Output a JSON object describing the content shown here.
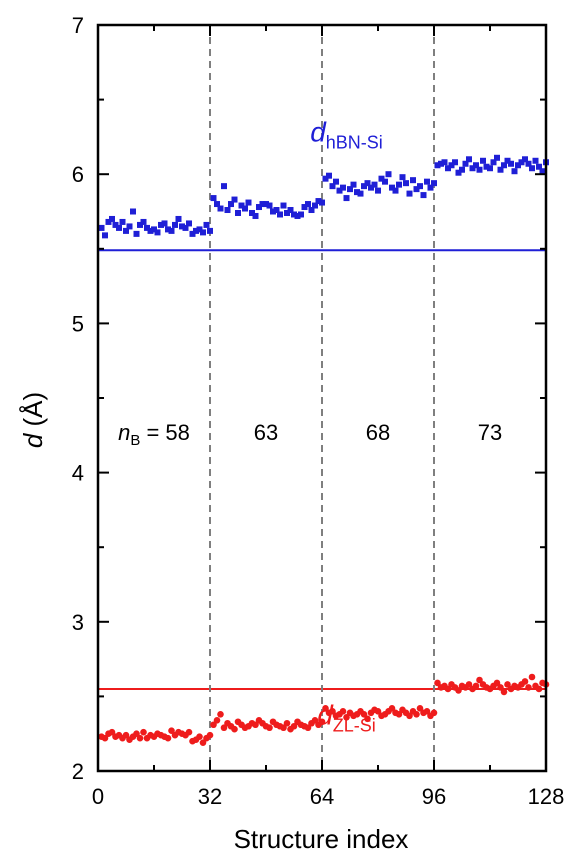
{
  "chart_data": {
    "type": "scatter",
    "xlabel": "Structure index",
    "ylabel": {
      "symbol": "d",
      "rest": " (Å)"
    },
    "xlim": [
      0,
      128
    ],
    "ylim": [
      2,
      7
    ],
    "xticks": [
      0,
      32,
      64,
      96,
      128
    ],
    "xtick_labels": [
      "0",
      "32",
      "64",
      "96",
      "128"
    ],
    "yticks": [
      2,
      3,
      4,
      5,
      6,
      7
    ],
    "ytick_labels": [
      "2",
      "3",
      "4",
      "5",
      "6",
      "7"
    ],
    "grid": false,
    "dividers": [
      32,
      64,
      96
    ],
    "group_labels": [
      {
        "prefix": "n",
        "subscript": "B",
        "text": " = 58",
        "x_center": 16
      },
      {
        "text": "63",
        "x_center": 48
      },
      {
        "text": "68",
        "x_center": 80
      },
      {
        "text": "73",
        "x_center": 112
      }
    ],
    "group_label_y": 4.22,
    "reference_lines": [
      {
        "series": "hBN-Si",
        "y": 5.49,
        "color": "#1f1fd6"
      },
      {
        "series": "ZL-Si",
        "y": 2.55,
        "color": "#ee1c1c"
      }
    ],
    "series": [
      {
        "name": "d_hBN-Si",
        "label_main": "d",
        "label_sub": "hBN-Si",
        "label_pos": [
          71,
          6.22
        ],
        "color": "#1f1fd6",
        "marker": "square",
        "x": [
          1,
          2,
          3,
          4,
          5,
          6,
          7,
          8,
          9,
          10,
          11,
          12,
          13,
          14,
          15,
          16,
          17,
          18,
          19,
          20,
          21,
          22,
          23,
          24,
          25,
          26,
          27,
          28,
          29,
          30,
          31,
          32,
          33,
          34,
          35,
          36,
          37,
          38,
          39,
          40,
          41,
          42,
          43,
          44,
          45,
          46,
          47,
          48,
          49,
          50,
          51,
          52,
          53,
          54,
          55,
          56,
          57,
          58,
          59,
          60,
          61,
          62,
          63,
          64,
          65,
          66,
          67,
          68,
          69,
          70,
          71,
          72,
          73,
          74,
          75,
          76,
          77,
          78,
          79,
          80,
          81,
          82,
          83,
          84,
          85,
          86,
          87,
          88,
          89,
          90,
          91,
          92,
          93,
          94,
          95,
          96,
          97,
          98,
          99,
          100,
          101,
          102,
          103,
          104,
          105,
          106,
          107,
          108,
          109,
          110,
          111,
          112,
          113,
          114,
          115,
          116,
          117,
          118,
          119,
          120,
          121,
          122,
          123,
          124,
          125,
          126,
          127,
          128
        ],
        "y": [
          5.64,
          5.59,
          5.68,
          5.7,
          5.66,
          5.64,
          5.68,
          5.62,
          5.65,
          5.75,
          5.6,
          5.66,
          5.68,
          5.64,
          5.62,
          5.63,
          5.61,
          5.66,
          5.67,
          5.63,
          5.62,
          5.66,
          5.7,
          5.65,
          5.64,
          5.67,
          5.6,
          5.62,
          5.63,
          5.61,
          5.66,
          5.62,
          5.84,
          5.8,
          5.77,
          5.92,
          5.76,
          5.8,
          5.83,
          5.74,
          5.79,
          5.77,
          5.81,
          5.74,
          5.72,
          5.78,
          5.8,
          5.8,
          5.79,
          5.75,
          5.76,
          5.73,
          5.79,
          5.74,
          5.76,
          5.73,
          5.72,
          5.73,
          5.78,
          5.8,
          5.76,
          5.79,
          5.82,
          5.81,
          5.97,
          5.99,
          5.92,
          5.95,
          5.89,
          5.91,
          5.84,
          5.9,
          5.93,
          5.88,
          5.87,
          5.92,
          5.94,
          5.91,
          5.93,
          5.89,
          5.97,
          5.95,
          6.0,
          5.91,
          5.89,
          5.93,
          5.98,
          5.94,
          5.87,
          5.96,
          5.9,
          5.92,
          5.86,
          5.95,
          5.91,
          5.94,
          6.06,
          6.07,
          6.08,
          6.04,
          6.06,
          6.08,
          6.01,
          6.03,
          6.07,
          6.1,
          6.04,
          6.06,
          6.03,
          6.09,
          6.05,
          6.04,
          6.08,
          6.11,
          6.03,
          6.06,
          6.09,
          6.07,
          6.02,
          6.06,
          6.08,
          6.1,
          6.07,
          6.04,
          6.09,
          6.05,
          6.02,
          6.08
        ]
      },
      {
        "name": "d_ZL-Si",
        "label_main": "d",
        "label_sub": "ZL-Si",
        "label_pos": [
          71,
          2.31
        ],
        "color": "#ee1c1c",
        "marker": "circle",
        "x": [
          1,
          2,
          3,
          4,
          5,
          6,
          7,
          8,
          9,
          10,
          11,
          12,
          13,
          14,
          15,
          16,
          17,
          18,
          19,
          20,
          21,
          22,
          23,
          24,
          25,
          26,
          27,
          28,
          29,
          30,
          31,
          32,
          33,
          34,
          35,
          36,
          37,
          38,
          39,
          40,
          41,
          42,
          43,
          44,
          45,
          46,
          47,
          48,
          49,
          50,
          51,
          52,
          53,
          54,
          55,
          56,
          57,
          58,
          59,
          60,
          61,
          62,
          63,
          64,
          65,
          66,
          67,
          68,
          69,
          70,
          71,
          72,
          73,
          74,
          75,
          76,
          77,
          78,
          79,
          80,
          81,
          82,
          83,
          84,
          85,
          86,
          87,
          88,
          89,
          90,
          91,
          92,
          93,
          94,
          95,
          96,
          97,
          98,
          99,
          100,
          101,
          102,
          103,
          104,
          105,
          106,
          107,
          108,
          109,
          110,
          111,
          112,
          113,
          114,
          115,
          116,
          117,
          118,
          119,
          120,
          121,
          122,
          123,
          124,
          125,
          126,
          127,
          128
        ],
        "y": [
          2.23,
          2.22,
          2.25,
          2.26,
          2.23,
          2.24,
          2.22,
          2.24,
          2.21,
          2.23,
          2.25,
          2.22,
          2.26,
          2.22,
          2.24,
          2.23,
          2.25,
          2.24,
          2.23,
          2.22,
          2.27,
          2.24,
          2.26,
          2.25,
          2.24,
          2.26,
          2.2,
          2.21,
          2.23,
          2.19,
          2.22,
          2.24,
          2.31,
          2.34,
          2.38,
          2.29,
          2.32,
          2.3,
          2.28,
          2.33,
          2.31,
          2.29,
          2.3,
          2.32,
          2.31,
          2.34,
          2.32,
          2.3,
          2.29,
          2.33,
          2.31,
          2.3,
          2.29,
          2.32,
          2.28,
          2.3,
          2.33,
          2.31,
          2.3,
          2.29,
          2.32,
          2.34,
          2.31,
          2.33,
          2.42,
          2.39,
          2.4,
          2.37,
          2.38,
          2.4,
          2.36,
          2.39,
          2.37,
          2.38,
          2.4,
          2.38,
          2.35,
          2.39,
          2.41,
          2.4,
          2.37,
          2.38,
          2.4,
          2.42,
          2.39,
          2.38,
          2.41,
          2.39,
          2.37,
          2.4,
          2.38,
          2.42,
          2.39,
          2.4,
          2.37,
          2.39,
          2.59,
          2.56,
          2.57,
          2.55,
          2.58,
          2.56,
          2.54,
          2.57,
          2.56,
          2.58,
          2.55,
          2.57,
          2.61,
          2.58,
          2.56,
          2.55,
          2.57,
          2.59,
          2.56,
          2.53,
          2.58,
          2.55,
          2.57,
          2.56,
          2.58,
          2.6,
          2.56,
          2.63,
          2.57,
          2.55,
          2.59,
          2.58
        ]
      }
    ]
  }
}
